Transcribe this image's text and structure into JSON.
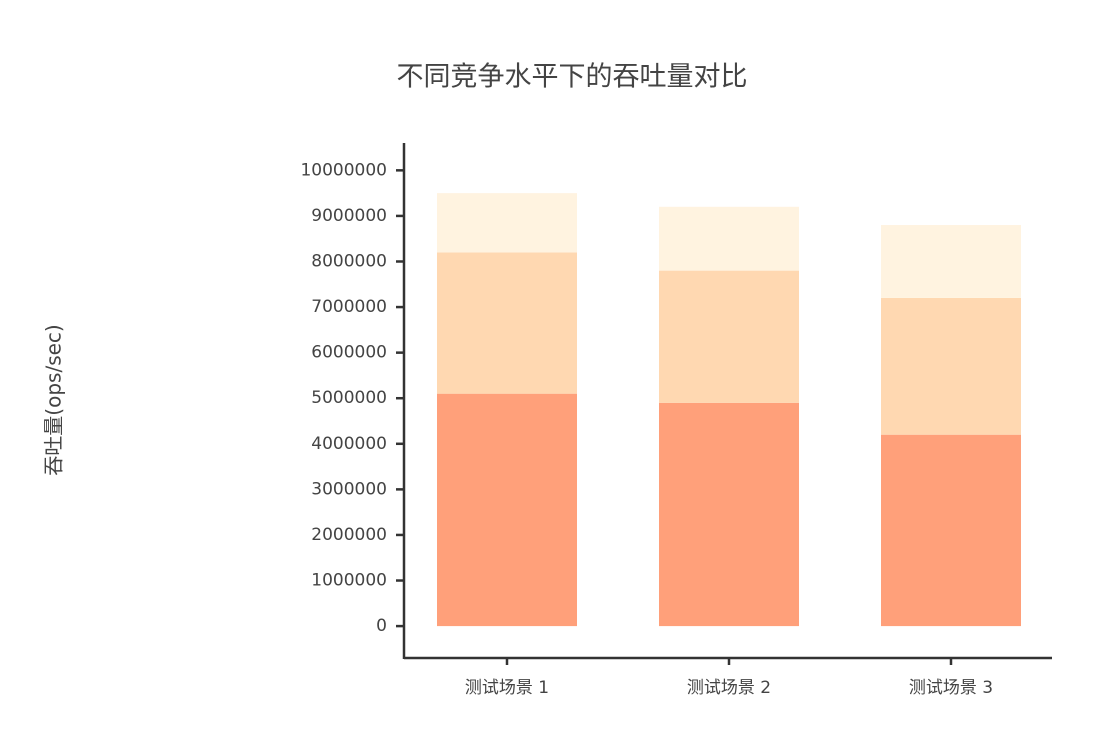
{
  "chart_data": {
    "type": "stacked_bar",
    "title": "不同竞争水平下的吞吐量对比",
    "y_label": "吞吐量(ops/sec)",
    "categories": [
      "测试场景 1",
      "测试场景 2",
      "测试场景 3"
    ],
    "series": [
      {
        "color": "#ffa07a",
        "values": [
          5100000,
          4900000,
          4200000
        ]
      },
      {
        "color": "#ffd8b1",
        "values": [
          3100000,
          2900000,
          3000000
        ]
      },
      {
        "color": "#fff3e0",
        "values": [
          1300000,
          1400000,
          1600000
        ]
      }
    ],
    "ylim": [
      -700000,
      10600000
    ],
    "yticks": [
      0,
      1000000,
      2000000,
      3000000,
      4000000,
      5000000,
      6000000,
      7000000,
      8000000,
      9000000,
      10000000
    ]
  }
}
